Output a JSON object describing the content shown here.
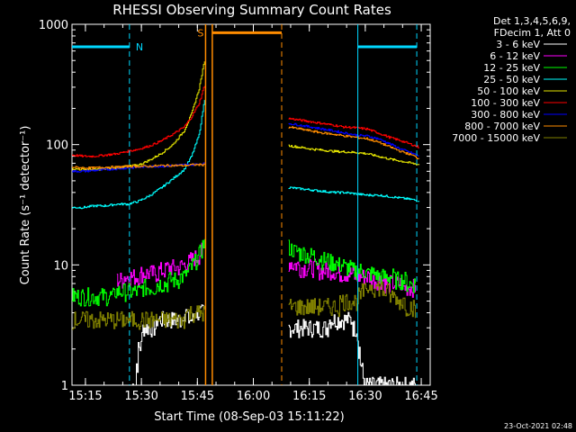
{
  "chart_data": {
    "type": "line",
    "title": "RHESSI Observing Summary Count Rates",
    "xlabel": "Start Time (08-Sep-03 15:11:22)",
    "ylabel": "Count Rate (s⁻¹ detector⁻¹)",
    "ylim": [
      1,
      1000
    ],
    "yscale": "log",
    "xlim_minutes": [
      0,
      96
    ],
    "x_unit": "minutes after 15:11:22",
    "x_ticks": [
      {
        "t": 3.6,
        "label": "15:15"
      },
      {
        "t": 18.6,
        "label": "15:30"
      },
      {
        "t": 33.6,
        "label": "15:45"
      },
      {
        "t": 48.6,
        "label": "16:00"
      },
      {
        "t": 63.6,
        "label": "16:15"
      },
      {
        "t": 78.6,
        "label": "16:30"
      },
      {
        "t": 93.6,
        "label": "16:45"
      }
    ],
    "y_ticks": [
      {
        "v": 1,
        "label": "1"
      },
      {
        "v": 10,
        "label": "10"
      },
      {
        "v": 100,
        "label": "100"
      },
      {
        "v": 1000,
        "label": "1000"
      }
    ],
    "legend_header": [
      "Det 1,3,4,5,6,9,",
      "FDecim 1, Att 0"
    ],
    "legend_position": "right",
    "footer_date": "23-Oct-2021 02:48",
    "data_gap": [
      37.6,
      57.6
    ],
    "night_markers": {
      "label": "N",
      "color": "#00d8ff",
      "bars": [
        [
          0,
          15.4
        ],
        [
          76.6,
          92.4
        ]
      ],
      "bar_level": 650,
      "dashed_lines": [
        15.4,
        92.4
      ],
      "solid_lines": [
        76.6
      ]
    },
    "saa_markers": {
      "label": "S",
      "color": "#ff8c00",
      "bar": [
        37.6,
        56.2
      ],
      "bar_level": 850,
      "solid_lines": [
        35.8,
        37.6
      ],
      "dashed_lines": [
        56.2
      ]
    },
    "series": [
      {
        "name": "3 - 6 keV",
        "color": "#ffffff",
        "seg1": {
          "t": [
            16,
            17,
            18,
            19,
            20,
            22,
            24,
            26,
            28,
            30,
            32,
            34,
            35.6
          ],
          "v": [
            1.0,
            1.2,
            2.0,
            2.8,
            3.0,
            3.2,
            3.4,
            3.4,
            3.6,
            3.8,
            3.7,
            3.9,
            4.2
          ]
        },
        "seg2": {
          "t": [
            58,
            61,
            64,
            67,
            70,
            73,
            76,
            78,
            80,
            82,
            84,
            86,
            88,
            90,
            92
          ],
          "v": [
            2.8,
            3.0,
            3.2,
            3.2,
            3.3,
            3.4,
            3.2,
            1.2,
            1.1,
            1.0,
            1.0,
            1.0,
            1.0,
            1.0,
            1.0
          ]
        }
      },
      {
        "name": "6 - 12 keV",
        "color": "#ff00ff",
        "seg1": {
          "t": [
            12,
            14,
            16,
            18,
            20,
            22,
            24,
            26,
            28,
            30,
            32,
            34,
            35.6
          ],
          "v": [
            7.5,
            7.8,
            8.0,
            8.2,
            8.5,
            8.5,
            9.0,
            9.5,
            9.5,
            10,
            11,
            12,
            14
          ]
        },
        "seg2": {
          "t": [
            58,
            60,
            62,
            64,
            66,
            68,
            70,
            72,
            74,
            76,
            78,
            80,
            82,
            84,
            86,
            88,
            90,
            92
          ],
          "v": [
            10.5,
            10,
            9.5,
            9.5,
            9.2,
            9,
            8.8,
            8.5,
            8.5,
            8.2,
            8,
            7.8,
            7.5,
            7.2,
            7,
            6.8,
            6.6,
            6.5
          ]
        }
      },
      {
        "name": "12 - 25 keV",
        "color": "#00ff00",
        "seg1": {
          "t": [
            0,
            3,
            6,
            9,
            12,
            15,
            18,
            21,
            24,
            27,
            30,
            32,
            34,
            35.6
          ],
          "v": [
            5.5,
            5.5,
            5.6,
            5.6,
            5.8,
            6,
            6.2,
            6.5,
            7,
            7.5,
            8,
            9.5,
            12,
            16
          ]
        },
        "seg2": {
          "t": [
            58,
            60,
            62,
            64,
            66,
            68,
            70,
            72,
            74,
            76,
            78,
            80,
            82,
            84,
            86,
            88,
            90,
            92
          ],
          "v": [
            14,
            13,
            12.5,
            12,
            11.5,
            11,
            10.5,
            10,
            9.5,
            9,
            8.8,
            8.5,
            8.2,
            8,
            7.8,
            7.5,
            7.2,
            7
          ]
        }
      },
      {
        "name": "25 - 50 keV",
        "color": "#00ffff",
        "seg1": {
          "t": [
            0,
            3,
            6,
            9,
            12,
            15,
            18,
            21,
            24,
            27,
            30,
            32,
            34,
            35.6
          ],
          "v": [
            30,
            30,
            31,
            31,
            32,
            32,
            34,
            38,
            44,
            52,
            62,
            80,
            120,
            250
          ]
        },
        "seg2": {
          "t": [
            58,
            61,
            64,
            67,
            70,
            73,
            76,
            79,
            82,
            85,
            88,
            91,
            93
          ],
          "v": [
            44,
            43,
            42,
            41,
            40,
            40,
            39,
            38,
            38,
            37,
            36,
            35,
            34
          ]
        }
      },
      {
        "name": "50 - 100 keV",
        "color": "#e6e600",
        "seg1": {
          "t": [
            0,
            3,
            6,
            9,
            12,
            15,
            18,
            21,
            24,
            27,
            30,
            32,
            34,
            35.6
          ],
          "v": [
            63,
            62,
            62,
            63,
            64,
            66,
            68,
            75,
            85,
            100,
            130,
            180,
            290,
            520
          ]
        },
        "seg2": {
          "t": [
            58,
            61,
            64,
            67,
            70,
            73,
            76,
            79,
            82,
            85,
            88,
            91,
            93
          ],
          "v": [
            98,
            95,
            92,
            90,
            88,
            87,
            86,
            84,
            80,
            76,
            73,
            70,
            68
          ]
        }
      },
      {
        "name": "100 - 300 keV",
        "color": "#ff0000",
        "seg1": {
          "t": [
            0,
            3,
            6,
            9,
            12,
            15,
            18,
            21,
            24,
            27,
            30,
            32,
            34,
            35.6
          ],
          "v": [
            82,
            80,
            80,
            82,
            84,
            88,
            92,
            98,
            108,
            122,
            140,
            170,
            220,
            320
          ]
        },
        "seg2": {
          "t": [
            58,
            61,
            64,
            67,
            70,
            73,
            76,
            79,
            82,
            85,
            88,
            91,
            93
          ],
          "v": [
            165,
            160,
            155,
            150,
            145,
            140,
            138,
            135,
            125,
            115,
            108,
            100,
            95
          ]
        }
      },
      {
        "name": "300 - 800 keV",
        "color": "#0000ff",
        "seg1": {
          "t": [
            0,
            3,
            6,
            9,
            12,
            15,
            18,
            21,
            24,
            27,
            30,
            32,
            34,
            35.6
          ],
          "v": [
            60,
            60,
            61,
            62,
            63,
            64,
            65,
            66,
            66,
            67,
            68,
            68,
            69,
            70
          ]
        },
        "seg2": {
          "t": [
            58,
            61,
            64,
            67,
            70,
            73,
            76,
            79,
            82,
            85,
            88,
            91,
            93
          ],
          "v": [
            150,
            145,
            140,
            135,
            130,
            125,
            120,
            118,
            112,
            102,
            92,
            85,
            80
          ]
        }
      },
      {
        "name": "800 - 7000 keV",
        "color": "#ff8c00",
        "seg1": {
          "t": [
            0,
            3,
            6,
            9,
            12,
            15,
            18,
            21,
            24,
            27,
            30,
            32,
            34,
            35.6
          ],
          "v": [
            65,
            64,
            64,
            65,
            65,
            66,
            66,
            66,
            67,
            67,
            67,
            68,
            68,
            68
          ]
        },
        "seg2": {
          "t": [
            58,
            61,
            64,
            67,
            70,
            73,
            76,
            79,
            82,
            85,
            88,
            91,
            93
          ],
          "v": [
            140,
            135,
            130,
            125,
            122,
            118,
            115,
            112,
            105,
            96,
            88,
            82,
            76
          ]
        }
      },
      {
        "name": "7000 - 15000 keV",
        "color": "#808000",
        "seg1": {
          "t": [
            0,
            4,
            8,
            12,
            16,
            20,
            24,
            28,
            32,
            35.6
          ],
          "v": [
            3.6,
            3.6,
            3.6,
            3.6,
            3.6,
            3.7,
            3.7,
            3.7,
            3.8,
            3.9
          ]
        },
        "seg2": {
          "t": [
            58,
            61,
            64,
            67,
            70,
            73,
            76,
            78,
            80,
            82,
            84,
            86,
            88,
            90,
            92
          ],
          "v": [
            4.6,
            4.6,
            4.7,
            4.7,
            4.7,
            4.8,
            5.0,
            6.0,
            6.8,
            6.6,
            6.0,
            5.5,
            5.0,
            4.6,
            4.2
          ]
        }
      }
    ]
  }
}
